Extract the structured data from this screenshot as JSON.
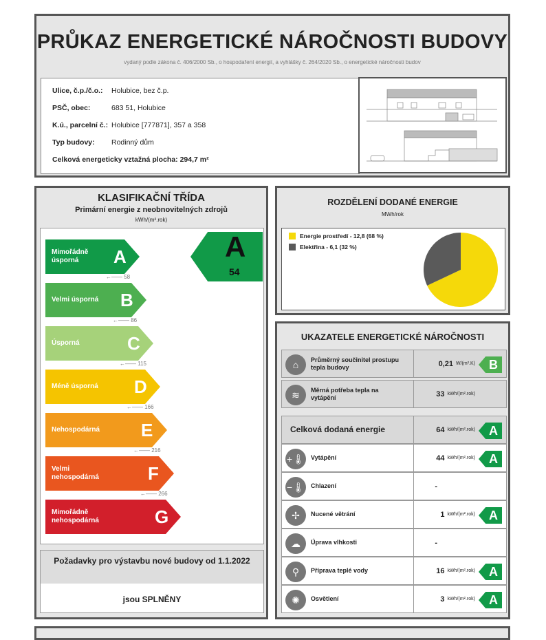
{
  "header": {
    "title": "PRŮKAZ ENERGETICKÉ NÁROČNOSTI BUDOVY",
    "subtitle": "vydaný podle zákona č. 406/2000 Sb., o hospodaření energií, a vyhlášky č. 264/2020 Sb., o energetické náročnosti budov"
  },
  "info": [
    {
      "label": "Ulice, č.p./č.o.:",
      "value": "Holubice, bez č.p."
    },
    {
      "label": "PSČ, obec:",
      "value": "683 51, Holubice"
    },
    {
      "label": "K.ú., parcelní č.:",
      "value": "Holubice [777871], 357 a 358"
    },
    {
      "label": "Typ budovy:",
      "value": "Rodinný dům"
    }
  ],
  "area": {
    "label": "Celková energeticky vztažná plocha:",
    "value": "294,7 m²"
  },
  "classification": {
    "title": "KLASIFIKAČNÍ TŘÍDA",
    "subtitle": "Primární energie z neobnovitelných zdrojů",
    "unit": "kWh/(m².rok)",
    "classes": [
      {
        "letter": "A",
        "label": "Mimořádně úsporná",
        "color": "#119a48",
        "threshold": "58"
      },
      {
        "letter": "B",
        "label": "Velmi úsporná",
        "color": "#4daf50",
        "threshold": "86"
      },
      {
        "letter": "C",
        "label": "Úsporná",
        "color": "#a6d27a",
        "threshold": "115"
      },
      {
        "letter": "D",
        "label": "Méně úsporná",
        "color": "#f5c400",
        "threshold": "166"
      },
      {
        "letter": "E",
        "label": "Nehospodárná",
        "color": "#f29a1c",
        "threshold": "216"
      },
      {
        "letter": "F",
        "label": "Velmi nehospodárná",
        "color": "#e9561f",
        "threshold": "266"
      },
      {
        "letter": "G",
        "label": "Mimořádně nehospodárná",
        "color": "#d21f2b"
      }
    ],
    "result": {
      "letter": "A",
      "value": "54",
      "color": "#119a48"
    }
  },
  "requirements": {
    "title": "Požadavky pro výstavbu nové budovy od 1.1.2022",
    "status": "jsou SPLNĚNY"
  },
  "distribution": {
    "title": "ROZDĚLENÍ DODANÉ ENERGIE",
    "unit": "MWh/rok",
    "items": [
      {
        "label": "Energie prostředí - 12,8 (68 %)",
        "value": 12.8,
        "percent": 68,
        "color": "#f5d90a"
      },
      {
        "label": "Elektřina - 6,1 (32 %)",
        "value": 6.1,
        "percent": 32,
        "color": "#5a5a5a"
      }
    ]
  },
  "indicators": {
    "title": "UKAZATELE ENERGETICKÉ NÁROČNOSTI",
    "rows": [
      {
        "icon": "house-icon",
        "glyph": "⌂",
        "label": "Průměrný součinitel prostupu tepla budovy",
        "value": "0,21",
        "unit": "W/(m².K)",
        "class": "B",
        "color": "#4daf50",
        "grey": true
      },
      {
        "icon": "heat-demand-icon",
        "glyph": "≋",
        "label": "Měrná potřeba tepla na vytápění",
        "value": "33",
        "unit": "kWh/(m².rok)",
        "grey": true
      },
      {
        "icon": "",
        "label": "Celková dodaná energie",
        "value": "64",
        "unit": "kWh/(m².rok)",
        "class": "A",
        "color": "#119a48",
        "grey": true,
        "big": true
      },
      {
        "icon": "heating-thermometer-icon",
        "glyph": "+🌡",
        "label": "Vytápění",
        "value": "44",
        "unit": "kWh/(m².rok)",
        "class": "A",
        "color": "#119a48"
      },
      {
        "icon": "cooling-thermometer-icon",
        "glyph": "−🌡",
        "label": "Chlazení",
        "value": "-"
      },
      {
        "icon": "fan-icon",
        "glyph": "✢",
        "label": "Nucené větrání",
        "value": "1",
        "unit": "kWh/(m².rok)",
        "class": "A",
        "color": "#119a48"
      },
      {
        "icon": "humidity-icon",
        "glyph": "☁",
        "label": "Úprava vlhkosti",
        "value": "-"
      },
      {
        "icon": "faucet-icon",
        "glyph": "⚲",
        "label": "Příprava teplé vody",
        "value": "16",
        "unit": "kWh/(m².rok)",
        "class": "A",
        "color": "#119a48"
      },
      {
        "icon": "lightbulb-icon",
        "glyph": "✺",
        "label": "Osvětlení",
        "value": "3",
        "unit": "kWh/(m².rok)",
        "class": "A",
        "color": "#119a48"
      }
    ]
  }
}
